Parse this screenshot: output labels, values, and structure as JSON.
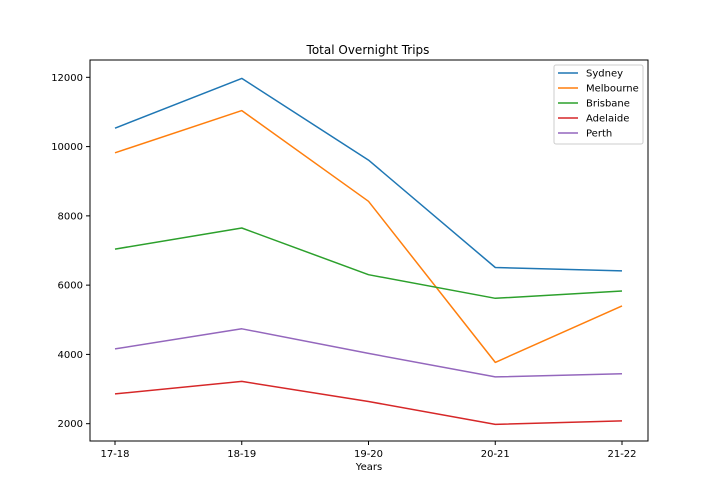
{
  "chart_data": {
    "type": "line",
    "title": "Total Overnight Trips",
    "xlabel": "Years",
    "ylabel": "",
    "categories": [
      "17-18",
      "18-19",
      "19-20",
      "20-21",
      "21-22"
    ],
    "ylim": [
      1500,
      12500
    ],
    "yticks": [
      2000,
      4000,
      6000,
      8000,
      10000,
      12000
    ],
    "grid": false,
    "legend_position": "top-right",
    "series": [
      {
        "name": "Sydney",
        "color": "#1f77b4",
        "values": [
          10530,
          11970,
          9610,
          6510,
          6410
        ]
      },
      {
        "name": "Melbourne",
        "color": "#ff7f0e",
        "values": [
          9820,
          11040,
          8420,
          3770,
          5400
        ]
      },
      {
        "name": "Brisbane",
        "color": "#2ca02c",
        "values": [
          7040,
          7650,
          6300,
          5620,
          5830
        ]
      },
      {
        "name": "Adelaide",
        "color": "#d62728",
        "values": [
          2860,
          3220,
          2640,
          1980,
          2080
        ]
      },
      {
        "name": "Perth",
        "color": "#9467bd",
        "values": [
          4160,
          4740,
          4030,
          3350,
          3440
        ]
      }
    ]
  }
}
